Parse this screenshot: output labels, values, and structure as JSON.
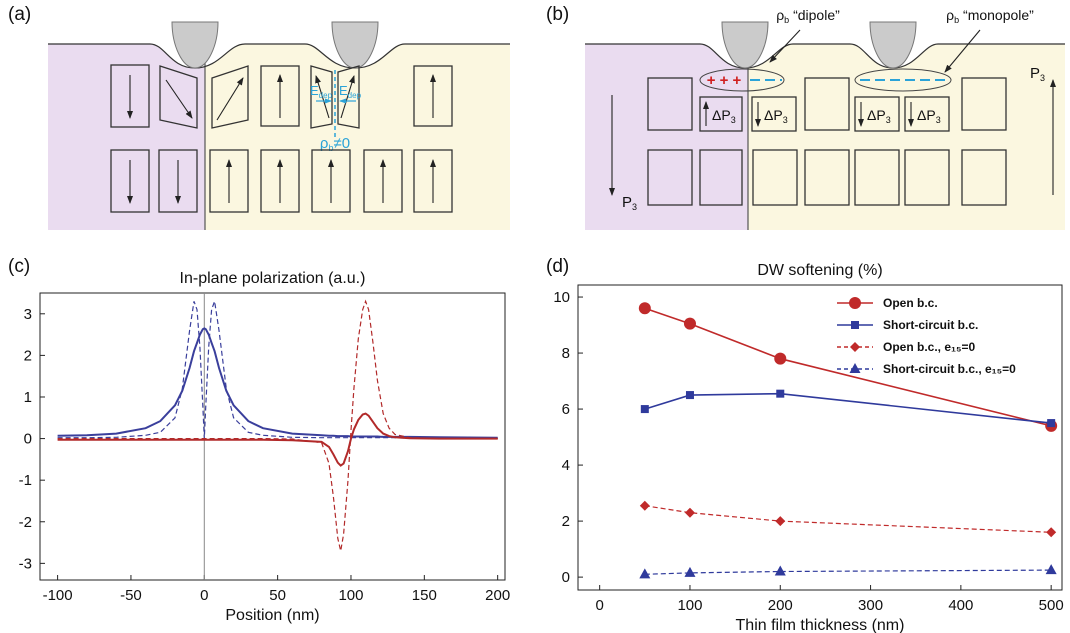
{
  "panel_labels": [
    "(a)",
    "(b)",
    "(c)",
    "(d)"
  ],
  "diagram_a": {
    "field_labels": [
      {
        "main": "E",
        "sub": "dep"
      },
      {
        "main": "E",
        "sub": "dep"
      }
    ],
    "charge": {
      "main": "ρ",
      "sub": "b",
      "rest": "≠0"
    }
  },
  "diagram_b": {
    "dipole": {
      "main": "ρ",
      "sub": "b",
      "rest": " “dipole”"
    },
    "monopole": {
      "main": "ρ",
      "sub": "b",
      "rest": " “monopole”"
    },
    "charges": "+ + +",
    "polarization": [
      {
        "main": "P",
        "sub": "3"
      },
      {
        "main": "P",
        "sub": "3"
      }
    ],
    "changes": [
      {
        "main": "ΔP",
        "sub": "3"
      },
      {
        "main": "ΔP",
        "sub": "3"
      },
      {
        "main": "ΔP",
        "sub": "3"
      },
      {
        "main": "ΔP",
        "sub": "3"
      }
    ]
  },
  "chart_data": [
    {
      "type": "line",
      "title": "In-plane polarization (a.u.)",
      "x_label": "Position (nm)",
      "x": [
        -100,
        -80,
        -60,
        -40,
        -30,
        -20,
        -15,
        -10,
        -7,
        -5,
        -3,
        -1,
        0,
        1,
        3,
        5,
        7,
        10,
        15,
        20,
        30,
        40,
        60,
        80,
        85,
        88,
        91,
        93,
        95,
        98,
        100,
        102,
        105,
        108,
        110,
        112,
        115,
        118,
        122,
        126,
        130,
        140,
        160,
        200
      ],
      "series": [
        {
          "color": "#3a3f9c",
          "dash": "solid",
          "values": [
            0.07,
            0.08,
            0.12,
            0.25,
            0.42,
            0.8,
            1.15,
            1.7,
            2.1,
            2.3,
            2.5,
            2.63,
            2.65,
            2.63,
            2.5,
            2.3,
            2.1,
            1.7,
            1.15,
            0.8,
            0.42,
            0.25,
            0.12,
            0.08,
            0.07,
            0.07,
            0.06,
            0.06,
            0.06,
            0.06,
            0.05,
            0.05,
            0.05,
            0.05,
            0.05,
            0.05,
            0.05,
            0.05,
            0.04,
            0.04,
            0.04,
            0.04,
            0.03,
            0.02
          ]
        },
        {
          "color": "#3a3f9c",
          "dash": "dashed",
          "values": [
            0.02,
            0.02,
            0.03,
            0.08,
            0.15,
            0.5,
            1.2,
            2.6,
            3.3,
            3.1,
            2.2,
            0.8,
            0,
            0.8,
            2.2,
            3.1,
            3.3,
            2.6,
            1.2,
            0.5,
            0.15,
            0.08,
            0.03,
            0.02,
            0.02,
            0.02,
            0.02,
            0.02,
            0.02,
            0.02,
            0.02,
            0.02,
            0.02,
            0.02,
            0.02,
            0.02,
            0.02,
            0.02,
            0.02,
            0.02,
            0.02,
            0.01,
            0.01,
            0.01
          ]
        },
        {
          "color": "#b22a2a",
          "dash": "solid",
          "values": [
            -0.03,
            -0.03,
            -0.03,
            -0.03,
            -0.03,
            -0.03,
            -0.03,
            -0.03,
            -0.03,
            -0.03,
            -0.03,
            -0.03,
            -0.03,
            -0.03,
            -0.03,
            -0.03,
            -0.03,
            -0.03,
            -0.03,
            -0.03,
            -0.03,
            -0.03,
            -0.04,
            -0.08,
            -0.2,
            -0.38,
            -0.58,
            -0.65,
            -0.6,
            -0.3,
            0,
            0.22,
            0.45,
            0.58,
            0.6,
            0.55,
            0.4,
            0.25,
            0.12,
            0.06,
            0.03,
            0.01,
            0,
            0
          ]
        },
        {
          "color": "#b22a2a",
          "dash": "dashed",
          "values": [
            0,
            0,
            0,
            0,
            0,
            0,
            0,
            0,
            0,
            0,
            0,
            0,
            0,
            0,
            0,
            0,
            0,
            0,
            0,
            0,
            0,
            0,
            -0.01,
            -0.1,
            -0.6,
            -1.4,
            -2.4,
            -2.7,
            -2.3,
            -1,
            0.2,
            1.2,
            2.4,
            3.1,
            3.3,
            3.1,
            2.3,
            1.4,
            0.6,
            0.25,
            0.1,
            0.02,
            0,
            0
          ]
        }
      ],
      "xlim": [
        -112,
        205
      ],
      "xticks": [
        -100,
        -50,
        0,
        50,
        100,
        150,
        200
      ],
      "ylim": [
        -3.4,
        3.5
      ],
      "yticks": [
        -3,
        -2,
        -1,
        0,
        1,
        2,
        3
      ],
      "x_zero_line": true
    },
    {
      "type": "line",
      "title": "DW softening (%)",
      "x_label": "Thin film thickness (nm)",
      "x": [
        50,
        100,
        200,
        500
      ],
      "series": [
        {
          "name": "Open b.c.",
          "color": "#c02a2a",
          "dash": "solid",
          "marker": "circle",
          "values": [
            9.6,
            9.05,
            7.8,
            5.4
          ]
        },
        {
          "name": "Short-circuit b.c.",
          "color": "#2f3a9c",
          "dash": "solid",
          "marker": "square",
          "values": [
            6.0,
            6.5,
            6.55,
            5.5
          ]
        },
        {
          "name": "Open b.c., e₁₅=0",
          "color": "#c02a2a",
          "dash": "dashed",
          "marker": "diamond",
          "values": [
            2.55,
            2.3,
            2.0,
            1.6
          ]
        },
        {
          "name": "Short-circuit b.c., e₁₅=0",
          "color": "#2f3a9c",
          "dash": "dashed",
          "marker": "triangle",
          "values": [
            0.1,
            0.15,
            0.2,
            0.25
          ]
        }
      ],
      "xlim": [
        -24,
        512
      ],
      "xticks": [
        0,
        100,
        200,
        300,
        400,
        500
      ],
      "ylim": [
        -0.46,
        10.43
      ],
      "yticks": [
        0,
        2,
        4,
        6,
        8,
        10
      ],
      "legend": "upper right"
    }
  ]
}
